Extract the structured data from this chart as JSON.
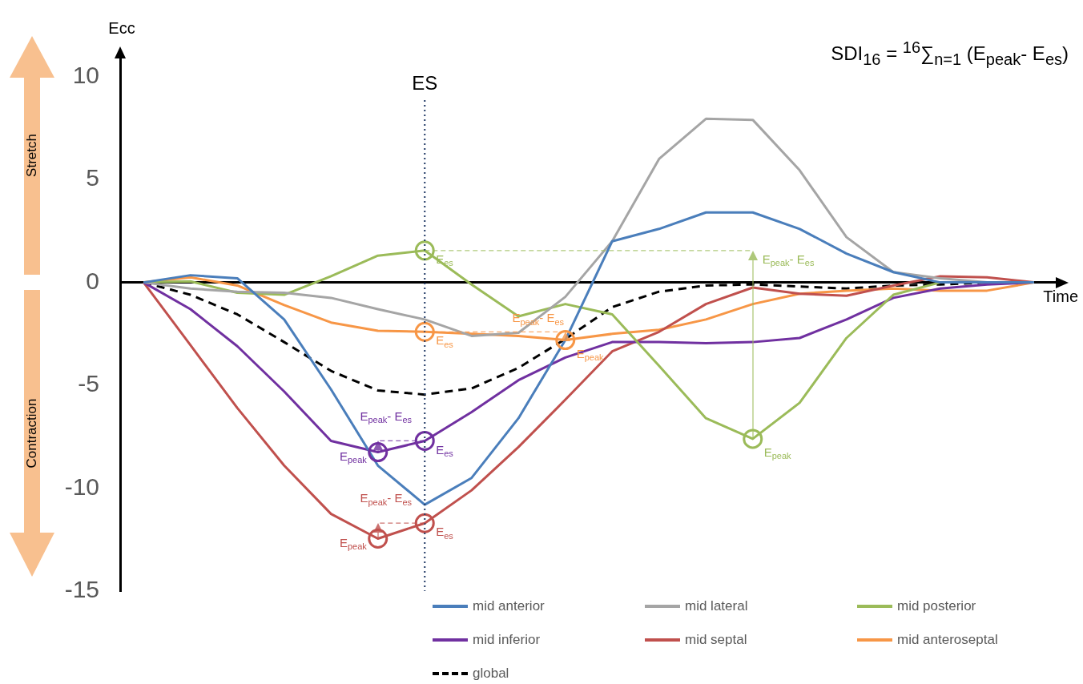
{
  "chart_data": {
    "type": "line",
    "title": "SDI$_{16}$ = $^{16}$∑$_{n=1}$ (E$_{peak}$- E$_{es}$)",
    "xlabel": "Time",
    "ylabel": "Ecc",
    "categories": [
      null,
      null,
      null,
      null,
      null,
      null,
      null,
      null,
      null,
      null,
      null,
      null,
      null,
      null,
      null,
      null,
      null,
      null,
      null,
      null
    ],
    "ylim": [
      -15,
      11
    ],
    "yticks": [
      -15,
      -10,
      -5,
      0,
      5,
      10
    ],
    "tick_labels": "y",
    "legend": "bottom",
    "marker": "none",
    "series": [
      {
        "name": "mid anterior",
        "color": "#4a7ebb",
        "values": [
          0,
          0.35,
          0.2,
          -1.8,
          -5.2,
          -8.9,
          -10.8,
          -9.5,
          -6.6,
          -2.8,
          2.0,
          2.6,
          3.4,
          3.4,
          2.6,
          1.4,
          0.5,
          0,
          0,
          0
        ]
      },
      {
        "name": "mid lateral",
        "color": "#a5a5a5",
        "values": [
          0,
          -0.3,
          -0.45,
          -0.5,
          -0.75,
          -1.3,
          -1.8,
          -2.6,
          -2.45,
          -0.7,
          2.0,
          6.0,
          7.95,
          7.9,
          5.45,
          2.2,
          0.5,
          0.2,
          0,
          0
        ]
      },
      {
        "name": "mid posterior",
        "color": "#9bbb59",
        "values": [
          0,
          0.05,
          -0.5,
          -0.6,
          0.3,
          1.3,
          1.55,
          -0.1,
          -1.65,
          -1.05,
          -1.55,
          -4.05,
          -6.6,
          -7.6,
          -5.85,
          -2.7,
          -0.6,
          0,
          0,
          0
        ]
      },
      {
        "name": "mid inferior",
        "color": "#7030a0",
        "values": [
          0,
          -1.3,
          -3.1,
          -5.3,
          -7.7,
          -8.25,
          -7.7,
          -6.3,
          -4.75,
          -3.65,
          -2.9,
          -2.9,
          -2.95,
          -2.9,
          -2.7,
          -1.8,
          -0.75,
          -0.3,
          -0.1,
          0
        ]
      },
      {
        "name": "mid septal",
        "color": "#c0504d",
        "values": [
          0,
          -3.05,
          -6.1,
          -8.9,
          -11.25,
          -12.45,
          -11.7,
          -10.1,
          -8.0,
          -5.7,
          -3.35,
          -2.4,
          -1.05,
          -0.25,
          -0.55,
          -0.65,
          -0.15,
          0.3,
          0.25,
          0
        ]
      },
      {
        "name": "mid anteroseptal",
        "color": "#f79646",
        "values": [
          0,
          0.25,
          -0.15,
          -1.1,
          -1.95,
          -2.35,
          -2.4,
          -2.5,
          -2.6,
          -2.8,
          -2.5,
          -2.3,
          -1.8,
          -1.05,
          -0.55,
          -0.4,
          -0.3,
          -0.4,
          -0.4,
          0
        ]
      },
      {
        "name": "global",
        "color": "#000000",
        "line_style": "dashed",
        "values": [
          0,
          -0.6,
          -1.55,
          -2.9,
          -4.3,
          -5.25,
          -5.45,
          -5.15,
          -4.15,
          -2.75,
          -1.2,
          -0.45,
          -0.15,
          -0.1,
          -0.2,
          -0.3,
          -0.15,
          -0.1,
          0,
          0
        ]
      },
      {
        "type": "scatter",
        "marker": "circle",
        "color": "#9bbb59",
        "values": [
          null,
          null,
          null,
          null,
          null,
          null,
          1.55,
          null,
          null,
          null,
          null,
          null,
          null,
          -7.6,
          null,
          null,
          null,
          null,
          null,
          null
        ]
      },
      {
        "type": "scatter",
        "marker": "circle",
        "color": "#f79646",
        "values": [
          null,
          null,
          null,
          null,
          null,
          null,
          -2.4,
          null,
          null,
          -2.8,
          null,
          null,
          null,
          null,
          null,
          null,
          null,
          null,
          null,
          null
        ]
      },
      {
        "type": "scatter",
        "marker": "circle",
        "color": "#7030a0",
        "values": [
          null,
          null,
          null,
          null,
          null,
          -8.25,
          -7.7,
          null,
          null,
          null,
          null,
          null,
          null,
          null,
          null,
          null,
          null,
          null,
          null,
          null
        ]
      },
      {
        "type": "scatter",
        "marker": "circle",
        "color": "#c0504d",
        "values": [
          null,
          null,
          null,
          null,
          null,
          -12.45,
          -11.7,
          null,
          null,
          null,
          null,
          null,
          null,
          null,
          null,
          null,
          null,
          null,
          null,
          null
        ]
      }
    ],
    "annotations": [
      "Stretch",
      "Contraction",
      "ES",
      "E$_{es}$",
      "E$_{peak}$",
      "E$_{peak}$- E$_{es}$",
      "E$_{es}$",
      "E$_{peak}$",
      "E$_{peak}$- E$_{es}$",
      "E$_{es}$",
      "E$_{peak}$",
      "E$_{peak}$- E$_{es}$",
      "E$_{es}$",
      "E$_{peak}$",
      "E$_{peak}$- E$_{es}$"
    ]
  }
}
